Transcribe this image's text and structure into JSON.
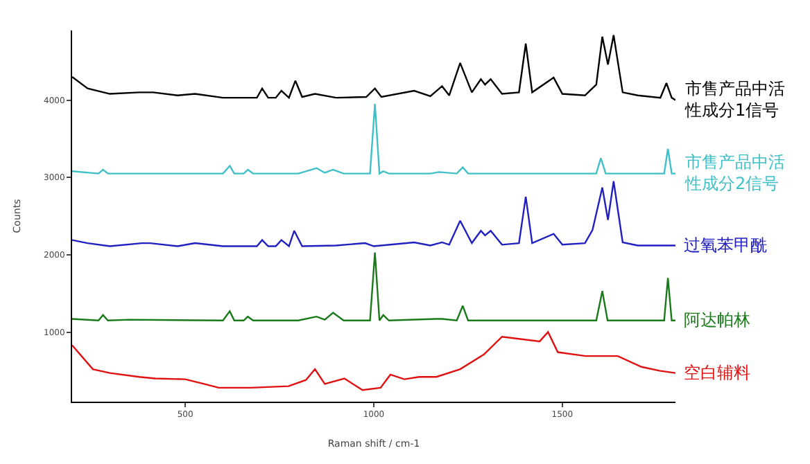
{
  "chart_data": {
    "type": "line",
    "xlabel": "Raman shift / cm-1",
    "ylabel": "Counts",
    "xlim": [
      200,
      1800
    ],
    "ylim": [
      100,
      4900
    ],
    "xticks": [
      500,
      1000,
      1500
    ],
    "yticks": [
      1000,
      2000,
      3000,
      4000
    ],
    "legend": false,
    "marker": "none",
    "line_style": "solid",
    "series": [
      {
        "name": "市售产品中活性成分1信号",
        "color": "#000000",
        "x": [
          200,
          241,
          300,
          378,
          415,
          480,
          526,
          600,
          690,
          704,
          720,
          740,
          755,
          775,
          792,
          810,
          844,
          900,
          980,
          1003,
          1020,
          1107,
          1150,
          1181,
          1200,
          1229,
          1260,
          1284,
          1295,
          1310,
          1340,
          1385,
          1403,
          1420,
          1477,
          1500,
          1560,
          1590,
          1606,
          1621,
          1636,
          1660,
          1700,
          1760,
          1776,
          1790,
          1800
        ],
        "values": [
          4300,
          4150,
          4080,
          4100,
          4100,
          4060,
          4080,
          4030,
          4030,
          4150,
          4030,
          4030,
          4120,
          4030,
          4250,
          4040,
          4080,
          4030,
          4040,
          4150,
          4040,
          4120,
          4050,
          4180,
          4060,
          4480,
          4100,
          4270,
          4200,
          4270,
          4080,
          4100,
          4730,
          4100,
          4290,
          4080,
          4060,
          4200,
          4820,
          4460,
          4840,
          4100,
          4060,
          4030,
          4220,
          4030,
          4000
        ]
      },
      {
        "name": "市售产品中活性成分2信号",
        "color": "#3fc0c8",
        "x": [
          200,
          270,
          282,
          295,
          400,
          600,
          618,
          630,
          655,
          666,
          680,
          800,
          848,
          870,
          892,
          920,
          990,
          1003,
          1015,
          1025,
          1040,
          1150,
          1173,
          1220,
          1236,
          1250,
          1500,
          1590,
          1602,
          1615,
          1770,
          1780,
          1790,
          1800
        ],
        "values": [
          3080,
          3050,
          3100,
          3050,
          3050,
          3050,
          3150,
          3050,
          3050,
          3100,
          3050,
          3050,
          3120,
          3060,
          3100,
          3050,
          3050,
          3950,
          3050,
          3080,
          3050,
          3050,
          3070,
          3050,
          3130,
          3050,
          3050,
          3050,
          3250,
          3050,
          3050,
          3370,
          3050,
          3050
        ]
      },
      {
        "name": "过氧苯甲酰",
        "color": "#2020c0",
        "x": [
          200,
          241,
          300,
          385,
          407,
          480,
          526,
          600,
          690,
          704,
          720,
          740,
          755,
          775,
          789,
          810,
          900,
          977,
          1000,
          1107,
          1150,
          1181,
          1200,
          1229,
          1260,
          1284,
          1295,
          1310,
          1340,
          1385,
          1403,
          1420,
          1477,
          1500,
          1560,
          1580,
          1606,
          1621,
          1636,
          1660,
          1700,
          1800
        ],
        "values": [
          2190,
          2150,
          2110,
          2150,
          2150,
          2110,
          2150,
          2110,
          2110,
          2190,
          2110,
          2110,
          2190,
          2110,
          2310,
          2110,
          2120,
          2150,
          2110,
          2160,
          2120,
          2160,
          2130,
          2440,
          2150,
          2310,
          2250,
          2310,
          2130,
          2150,
          2750,
          2150,
          2270,
          2130,
          2150,
          2320,
          2870,
          2450,
          2950,
          2160,
          2120,
          2120
        ]
      },
      {
        "name": "阿达帕林",
        "color": "#1a7a1a",
        "x": [
          200,
          270,
          282,
          295,
          352,
          600,
          618,
          630,
          655,
          666,
          680,
          800,
          848,
          870,
          892,
          920,
          990,
          1003,
          1015,
          1025,
          1040,
          1164,
          1181,
          1220,
          1236,
          1250,
          1590,
          1606,
          1620,
          1770,
          1780,
          1790,
          1800
        ],
        "values": [
          1170,
          1150,
          1220,
          1150,
          1160,
          1150,
          1270,
          1150,
          1150,
          1200,
          1150,
          1150,
          1200,
          1160,
          1250,
          1150,
          1150,
          2030,
          1150,
          1220,
          1150,
          1170,
          1170,
          1150,
          1340,
          1150,
          1150,
          1530,
          1150,
          1150,
          1700,
          1150,
          1150
        ]
      },
      {
        "name": "空白辅料",
        "color": "#e01010",
        "x": [
          200,
          255,
          300,
          378,
          420,
          500,
          550,
          589,
          674,
          774,
          820,
          844,
          870,
          922,
          970,
          1018,
          1044,
          1081,
          1120,
          1166,
          1229,
          1292,
          1340,
          1388,
          1440,
          1462,
          1488,
          1562,
          1647,
          1710,
          1758,
          1800
        ],
        "values": [
          830,
          520,
          470,
          420,
          400,
          390,
          330,
          280,
          280,
          300,
          380,
          520,
          330,
          400,
          250,
          280,
          450,
          390,
          420,
          420,
          520,
          710,
          940,
          910,
          880,
          1000,
          740,
          690,
          690,
          550,
          500,
          470
        ]
      }
    ]
  }
}
